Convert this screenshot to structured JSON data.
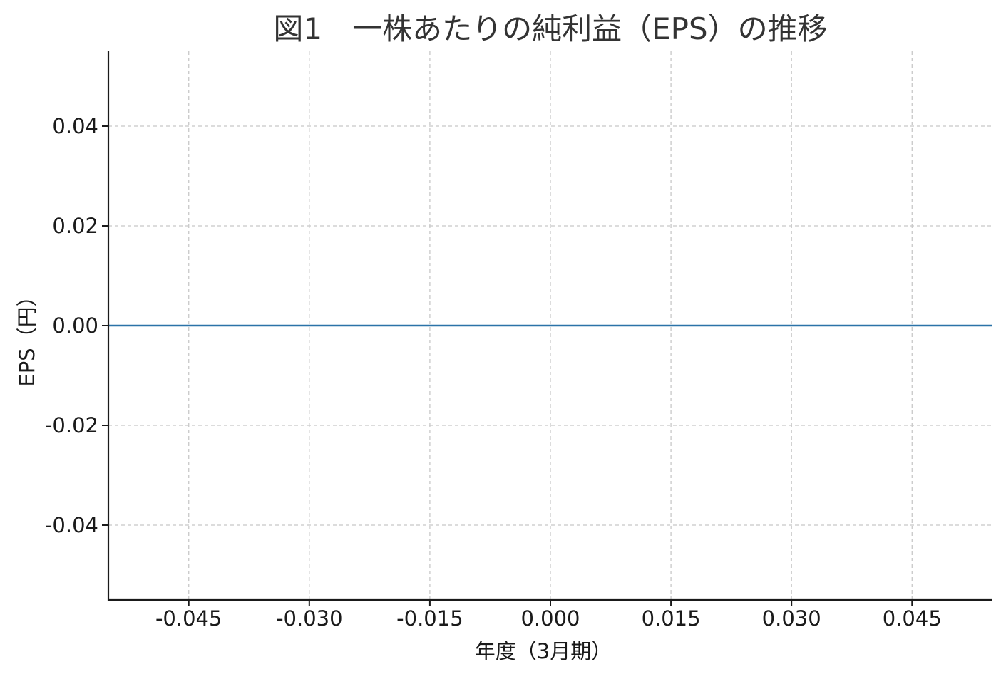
{
  "chart_data": {
    "type": "line",
    "title": "図1　一株あたりの純利益（EPS）の推移",
    "xlabel": "年度（3月期）",
    "ylabel": "EPS（円）",
    "xlim": [
      -0.055,
      0.055
    ],
    "ylim": [
      -0.055,
      0.055
    ],
    "x_ticks": [
      -0.045,
      -0.03,
      -0.015,
      0.0,
      0.015,
      0.03,
      0.045
    ],
    "x_tick_labels": [
      "-0.045",
      "-0.030",
      "-0.015",
      "0.000",
      "0.015",
      "0.030",
      "0.045"
    ],
    "y_ticks": [
      0.04,
      0.02,
      0.0,
      -0.02,
      -0.04
    ],
    "y_tick_labels": [
      "0.04",
      "0.02",
      "0.00",
      "-0.02",
      "-0.04"
    ],
    "grid": true,
    "series": [
      {
        "color": "#2b73a8",
        "x": [
          -0.055,
          0.055
        ],
        "values": [
          0.0,
          0.0
        ]
      }
    ]
  }
}
